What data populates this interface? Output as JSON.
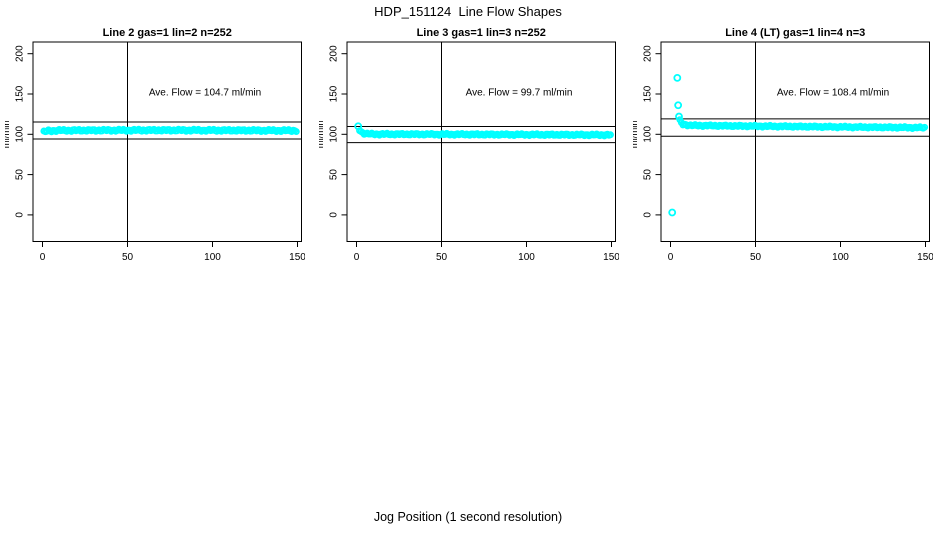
{
  "chart_data": {
    "type": "scatter",
    "title": "HDP_151124  Line Flow Shapes",
    "xlabel": "Jog Position (1 second resolution)",
    "ylabel": "ml/min",
    "x_ticks": [
      0,
      50,
      100,
      150
    ],
    "y_ticks": [
      0,
      50,
      100,
      150,
      200
    ],
    "xlim": [
      -6,
      153
    ],
    "ylim": [
      -33,
      215
    ],
    "grid": "off",
    "legend": "none",
    "marker": {
      "shape": "open-circle",
      "color": "#00FFFF"
    },
    "vline_x": 50,
    "panels": [
      {
        "title": "Line 2 gas=1 lin=2 n=252",
        "annotation": "Ave. Flow =  104.7  ml/min",
        "ave_flow_ml_min": 104.7,
        "hlines": [
          115.2,
          94.2
        ],
        "outliers": [],
        "band": {
          "x_from": 0.8,
          "x_to": 150,
          "noise": 1.5,
          "control_points": [
            [
              0.8,
              102.8
            ],
            [
              3,
              104.2
            ],
            [
              10,
              104.8
            ],
            [
              70,
              105.1
            ],
            [
              150,
              104.6
            ]
          ]
        }
      },
      {
        "title": "Line 3 gas=1 lin=3 n=252",
        "annotation": "Ave. Flow =  99.7  ml/min",
        "ave_flow_ml_min": 99.7,
        "hlines": [
          109.7,
          89.7
        ],
        "outliers": [
          [
            1,
            110
          ]
        ],
        "band": {
          "x_from": 1.8,
          "x_to": 150,
          "noise": 1.3,
          "control_points": [
            [
              1.8,
              105.5
            ],
            [
              3,
              102.5
            ],
            [
              5,
              100.8
            ],
            [
              10,
              100.2
            ],
            [
              60,
              99.9
            ],
            [
              150,
              99.2
            ]
          ]
        }
      },
      {
        "title": "Line 4 (LT) gas=1 lin=4 n=3",
        "annotation": "Ave. Flow =  108.4  ml/min",
        "ave_flow_ml_min": 108.4,
        "hlines": [
          119.2,
          97.6
        ],
        "outliers": [
          [
            1,
            3
          ],
          [
            4,
            170
          ],
          [
            4.5,
            136
          ],
          [
            5,
            122
          ]
        ],
        "band": {
          "x_from": 5.5,
          "x_to": 150,
          "noise": 1.2,
          "control_points": [
            [
              5.5,
              117
            ],
            [
              7,
              112.5
            ],
            [
              12,
              111
            ],
            [
              40,
              110.3
            ],
            [
              90,
              109.3
            ],
            [
              150,
              108.2
            ]
          ]
        }
      }
    ]
  }
}
